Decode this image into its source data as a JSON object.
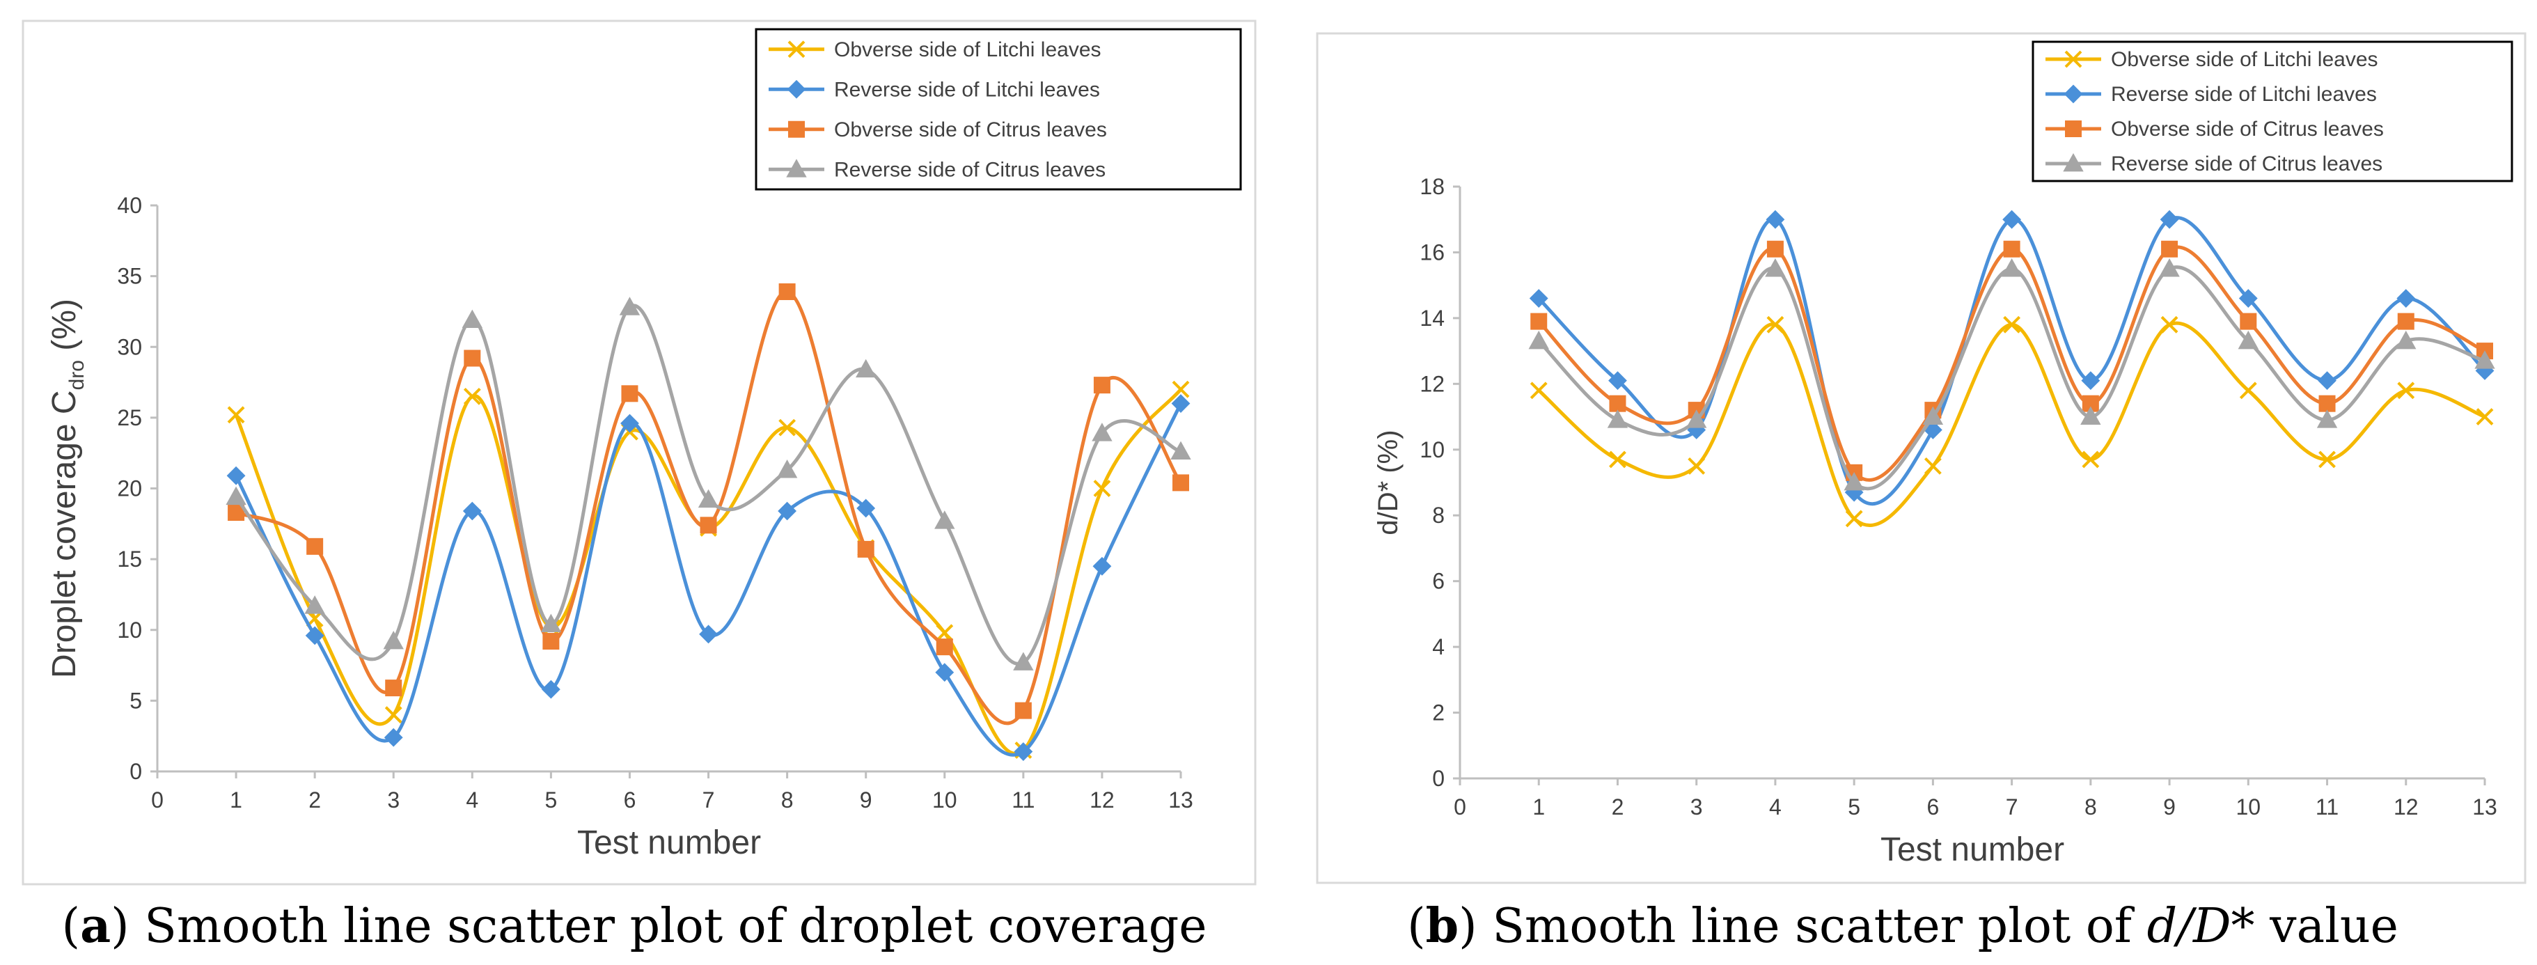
{
  "colors": {
    "litchi_obverse": "#F5B800",
    "litchi_reverse": "#4A90D9",
    "citrus_obverse": "#ED7D31",
    "citrus_reverse": "#A5A5A5"
  },
  "chart_data": [
    {
      "type": "line",
      "smooth": true,
      "panel_letter": "a",
      "caption_text": "Smooth line scatter plot of droplet coverage",
      "xlabel": "Test number",
      "ylabel": "Droplet coverage",
      "ylabel_symbol": "C",
      "ylabel_subscript": "dro",
      "ylabel_unit": "(%)",
      "xlim": [
        0,
        13
      ],
      "ylim": [
        0,
        40
      ],
      "xticks": [
        0,
        1,
        2,
        3,
        4,
        5,
        6,
        7,
        8,
        9,
        10,
        11,
        12,
        13
      ],
      "yticks": [
        0,
        5,
        10,
        15,
        20,
        25,
        30,
        35,
        40
      ],
      "legend_position": "top-right",
      "x": [
        1,
        2,
        3,
        4,
        5,
        6,
        7,
        8,
        9,
        10,
        11,
        12,
        13
      ],
      "series": [
        {
          "name": "Obverse side of Litchi leaves",
          "marker": "x",
          "color_key": "litchi_obverse",
          "values": [
            25.2,
            10.8,
            4.0,
            26.5,
            10.2,
            24.0,
            17.2,
            24.3,
            15.8,
            9.8,
            1.5,
            20.0,
            27.0
          ]
        },
        {
          "name": "Reverse side of Litchi leaves",
          "marker": "diamond",
          "color_key": "litchi_reverse",
          "values": [
            20.9,
            9.6,
            2.4,
            18.4,
            5.8,
            24.6,
            9.7,
            18.4,
            18.6,
            7.0,
            1.4,
            14.5,
            26.0
          ]
        },
        {
          "name": "Obverse side of Citrus leaves",
          "marker": "square",
          "color_key": "citrus_obverse",
          "values": [
            18.3,
            15.9,
            5.9,
            29.2,
            9.2,
            26.7,
            17.4,
            33.9,
            15.7,
            8.8,
            4.3,
            27.3,
            20.4
          ]
        },
        {
          "name": "Reverse side of Citrus leaves",
          "marker": "triangle",
          "color_key": "citrus_reverse",
          "values": [
            19.4,
            11.7,
            9.2,
            31.9,
            10.4,
            32.8,
            19.2,
            21.3,
            28.4,
            17.7,
            7.7,
            23.9,
            22.6
          ]
        }
      ]
    },
    {
      "type": "line",
      "smooth": true,
      "panel_letter": "b",
      "caption_text": "Smooth line scatter plot of",
      "caption_math": "d/D*",
      "caption_suffix": "value",
      "xlabel": "Test number",
      "ylabel": "d/D*",
      "ylabel_unit": "(%)",
      "xlim": [
        0,
        13
      ],
      "ylim": [
        0,
        18
      ],
      "xticks": [
        0,
        1,
        2,
        3,
        4,
        5,
        6,
        7,
        8,
        9,
        10,
        11,
        12,
        13
      ],
      "yticks": [
        0,
        2,
        4,
        6,
        8,
        10,
        12,
        14,
        16,
        18
      ],
      "legend_position": "top-right",
      "x": [
        1,
        2,
        3,
        4,
        5,
        6,
        7,
        8,
        9,
        10,
        11,
        12,
        13
      ],
      "series": [
        {
          "name": "Obverse side of Litchi leaves",
          "marker": "x",
          "color_key": "litchi_obverse",
          "values": [
            11.8,
            9.7,
            9.5,
            13.8,
            7.9,
            9.5,
            13.8,
            9.7,
            13.8,
            11.8,
            9.7,
            11.8,
            11.0
          ]
        },
        {
          "name": "Reverse side of Litchi leaves",
          "marker": "diamond",
          "color_key": "litchi_reverse",
          "values": [
            14.6,
            12.1,
            10.6,
            17.0,
            8.7,
            10.6,
            17.0,
            12.1,
            17.0,
            14.6,
            12.1,
            14.6,
            12.4
          ]
        },
        {
          "name": "Obverse side of Citrus leaves",
          "marker": "square",
          "color_key": "citrus_obverse",
          "values": [
            13.9,
            11.4,
            11.2,
            16.1,
            9.3,
            11.2,
            16.1,
            11.4,
            16.1,
            13.9,
            11.4,
            13.9,
            13.0
          ]
        },
        {
          "name": "Reverse side of Citrus leaves",
          "marker": "triangle",
          "color_key": "citrus_reverse",
          "values": [
            13.3,
            10.9,
            10.9,
            15.5,
            9.0,
            11.0,
            15.5,
            11.0,
            15.5,
            13.3,
            10.9,
            13.3,
            12.7
          ]
        }
      ]
    }
  ]
}
